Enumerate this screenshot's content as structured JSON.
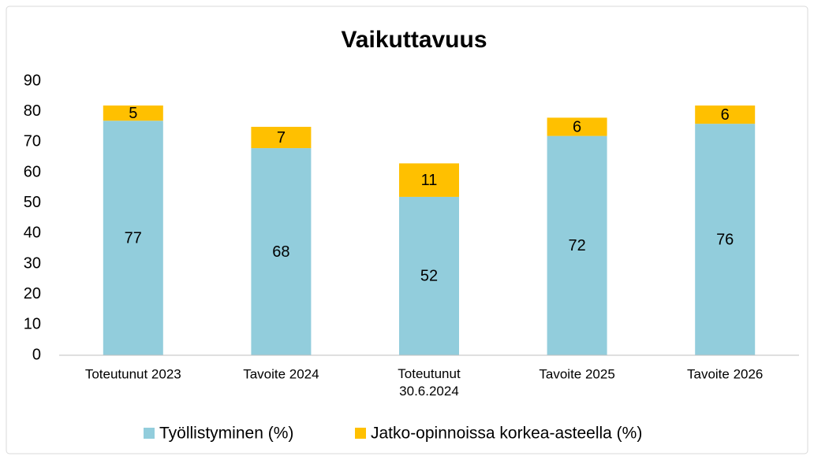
{
  "chart_data": {
    "type": "stacked_bar",
    "title": "Vaikuttavuus",
    "categories": [
      "Toteutunut 2023",
      "Tavoite 2024",
      "Toteutunut 30.6.2024",
      "Tavoite 2025",
      "Tavoite 2026"
    ],
    "series": [
      {
        "name": "Työllistyminen (%)",
        "color": "#92cddc",
        "values": [
          77,
          68,
          52,
          72,
          76
        ]
      },
      {
        "name": "Jatko-opinnoissa korkea-asteella (%)",
        "color": "#ffc000",
        "values": [
          5,
          7,
          11,
          6,
          6
        ]
      }
    ],
    "ylim": [
      0,
      90
    ],
    "yticks": [
      0,
      10,
      20,
      30,
      40,
      50,
      60,
      70,
      80,
      90
    ],
    "legend": "bottom",
    "grid": false
  }
}
